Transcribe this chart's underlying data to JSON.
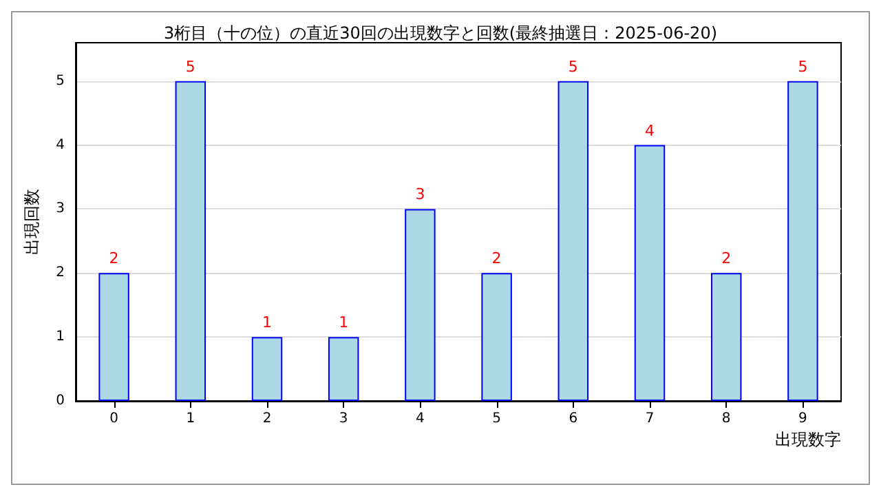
{
  "chart_data": {
    "type": "bar",
    "title": "3桁目（十の位）の直近30回の出現数字と回数(最終抽選日：2025-06-20)",
    "xlabel": "出現数字",
    "ylabel": "出現回数",
    "categories": [
      "0",
      "1",
      "2",
      "3",
      "4",
      "5",
      "6",
      "7",
      "8",
      "9"
    ],
    "values": [
      2,
      5,
      1,
      1,
      3,
      2,
      5,
      4,
      2,
      5
    ],
    "color": "#add8e6",
    "ylim": [
      0,
      5.6
    ],
    "yticks": [
      0,
      1,
      2,
      3,
      4,
      5
    ],
    "grid": "y",
    "data_labels": true
  }
}
